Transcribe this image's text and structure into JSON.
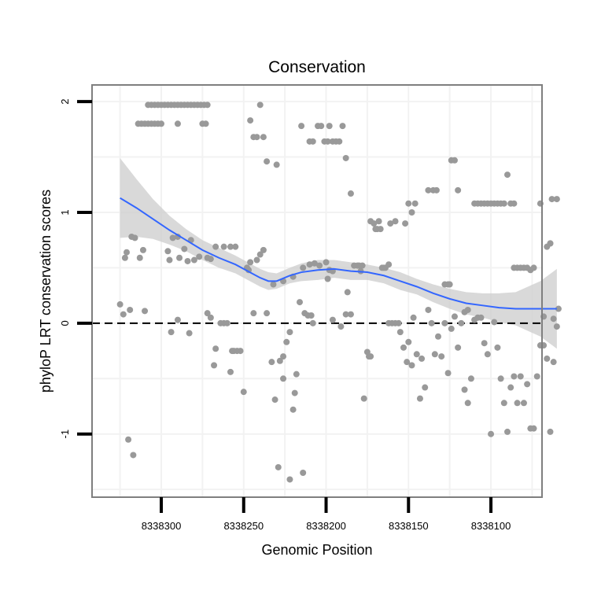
{
  "chart_data": {
    "type": "scatter",
    "title": "Conservation",
    "xlabel": "Genomic Position",
    "ylabel": "phyloP LRT conservation scores",
    "x_reversed": true,
    "xlim": [
      8338069,
      8338342
    ],
    "ylim": [
      -1.57,
      2.15
    ],
    "xticks": [
      8338300,
      8338250,
      8338200,
      8338150,
      8338100
    ],
    "xtick_labels": [
      "8338300",
      "8338250",
      "8338200",
      "8338150",
      "8338100"
    ],
    "yticks": [
      -1,
      0,
      1,
      2
    ],
    "ytick_labels": [
      "-1",
      "0",
      "1",
      "2"
    ],
    "reference_line": {
      "y": 0,
      "style": "dashed"
    },
    "colors": {
      "points": "#999999",
      "smooth": "#3366ff",
      "band": "#cccccc",
      "grid": "#f2f2f2",
      "frame": "#7f7f7f"
    },
    "points": [
      [
        8338325,
        0.17
      ],
      [
        8338323,
        0.08
      ],
      [
        8338322,
        0.59
      ],
      [
        8338321,
        0.64
      ],
      [
        8338320,
        -1.05
      ],
      [
        8338319,
        0.12
      ],
      [
        8338318,
        0.78
      ],
      [
        8338317,
        -1.19
      ],
      [
        8338316,
        0.77
      ],
      [
        8338313,
        0.59
      ],
      [
        8338311,
        0.66
      ],
      [
        8338310,
        0.11
      ],
      [
        8338314,
        1.8
      ],
      [
        8338312,
        1.8
      ],
      [
        8338310,
        1.8
      ],
      [
        8338308,
        1.8
      ],
      [
        8338306,
        1.8
      ],
      [
        8338304,
        1.8
      ],
      [
        8338302,
        1.8
      ],
      [
        8338300,
        1.8
      ],
      [
        8338290,
        1.8
      ],
      [
        8338275,
        1.8
      ],
      [
        8338273,
        1.8
      ],
      [
        8338308,
        1.97
      ],
      [
        8338306,
        1.97
      ],
      [
        8338304,
        1.97
      ],
      [
        8338302,
        1.97
      ],
      [
        8338300,
        1.97
      ],
      [
        8338298,
        1.97
      ],
      [
        8338296,
        1.97
      ],
      [
        8338294,
        1.97
      ],
      [
        8338292,
        1.97
      ],
      [
        8338290,
        1.97
      ],
      [
        8338288,
        1.97
      ],
      [
        8338286,
        1.97
      ],
      [
        8338284,
        1.97
      ],
      [
        8338282,
        1.97
      ],
      [
        8338280,
        1.97
      ],
      [
        8338278,
        1.97
      ],
      [
        8338276,
        1.97
      ],
      [
        8338274,
        1.97
      ],
      [
        8338272,
        1.97
      ],
      [
        8338296,
        0.65
      ],
      [
        8338295,
        0.57
      ],
      [
        8338293,
        0.77
      ],
      [
        8338290,
        0.78
      ],
      [
        8338289,
        0.59
      ],
      [
        8338286,
        0.67
      ],
      [
        8338284,
        0.56
      ],
      [
        8338282,
        0.75
      ],
      [
        8338280,
        0.57
      ],
      [
        8338277,
        0.6
      ],
      [
        8338272,
        0.59
      ],
      [
        8338270,
        0.58
      ],
      [
        8338267,
        0.69
      ],
      [
        8338262,
        0.69
      ],
      [
        8338258,
        0.69
      ],
      [
        8338255,
        0.69
      ],
      [
        8338294,
        -0.08
      ],
      [
        8338290,
        0.03
      ],
      [
        8338283,
        -0.09
      ],
      [
        8338272,
        0.09
      ],
      [
        8338270,
        0.05
      ],
      [
        8338268,
        -0.38
      ],
      [
        8338267,
        -0.23
      ],
      [
        8338264,
        0.0
      ],
      [
        8338262,
        0.0
      ],
      [
        8338260,
        0.0
      ],
      [
        8338258,
        -0.44
      ],
      [
        8338257,
        -0.25
      ],
      [
        8338256,
        -0.25
      ],
      [
        8338254,
        -0.25
      ],
      [
        8338252,
        -0.25
      ],
      [
        8338250,
        -0.62
      ],
      [
        8338248,
        0.5
      ],
      [
        8338247,
        0.48
      ],
      [
        8338246,
        0.55
      ],
      [
        8338244,
        0.09
      ],
      [
        8338242,
        0.57
      ],
      [
        8338240,
        0.62
      ],
      [
        8338238,
        0.66
      ],
      [
        8338236,
        0.09
      ],
      [
        8338246,
        1.83
      ],
      [
        8338244,
        1.68
      ],
      [
        8338242,
        1.68
      ],
      [
        8338240,
        1.97
      ],
      [
        8338238,
        1.68
      ],
      [
        8338236,
        1.46
      ],
      [
        8338230,
        1.43
      ],
      [
        8338233,
        -0.35
      ],
      [
        8338231,
        -0.69
      ],
      [
        8338229,
        -1.3
      ],
      [
        8338228,
        -0.34
      ],
      [
        8338226,
        -0.3
      ],
      [
        8338226,
        -0.5
      ],
      [
        8338224,
        -0.17
      ],
      [
        8338222,
        -0.08
      ],
      [
        8338222,
        -1.41
      ],
      [
        8338220,
        -0.78
      ],
      [
        8338219,
        -0.63
      ],
      [
        8338218,
        -0.46
      ],
      [
        8338216,
        0.19
      ],
      [
        8338214,
        -1.35
      ],
      [
        8338213,
        0.09
      ],
      [
        8338211,
        0.07
      ],
      [
        8338209,
        0.07
      ],
      [
        8338208,
        0.0
      ],
      [
        8338232,
        0.35
      ],
      [
        8338226,
        0.38
      ],
      [
        8338220,
        0.42
      ],
      [
        8338214,
        0.5
      ],
      [
        8338210,
        0.53
      ],
      [
        8338207,
        0.54
      ],
      [
        8338204,
        0.52
      ],
      [
        8338200,
        0.55
      ],
      [
        8338199,
        0.4
      ],
      [
        8338198,
        0.48
      ],
      [
        8338196,
        0.47
      ],
      [
        8338215,
        1.78
      ],
      [
        8338210,
        1.64
      ],
      [
        8338208,
        1.64
      ],
      [
        8338205,
        1.78
      ],
      [
        8338203,
        1.78
      ],
      [
        8338201,
        1.64
      ],
      [
        8338199,
        1.64
      ],
      [
        8338198,
        1.78
      ],
      [
        8338196,
        1.64
      ],
      [
        8338194,
        1.64
      ],
      [
        8338192,
        1.64
      ],
      [
        8338190,
        1.78
      ],
      [
        8338188,
        1.49
      ],
      [
        8338185,
        1.17
      ],
      [
        8338196,
        0.03
      ],
      [
        8338191,
        -0.03
      ],
      [
        8338188,
        0.08
      ],
      [
        8338187,
        0.28
      ],
      [
        8338185,
        0.08
      ],
      [
        8338183,
        0.52
      ],
      [
        8338181,
        0.52
      ],
      [
        8338180,
        0.52
      ],
      [
        8338179,
        0.47
      ],
      [
        8338178,
        0.52
      ],
      [
        8338177,
        -0.68
      ],
      [
        8338175,
        -0.26
      ],
      [
        8338174,
        -0.3
      ],
      [
        8338173,
        -0.3
      ],
      [
        8338173,
        0.92
      ],
      [
        8338171,
        0.9
      ],
      [
        8338170,
        0.85
      ],
      [
        8338169,
        0.85
      ],
      [
        8338168,
        0.92
      ],
      [
        8338167,
        0.85
      ],
      [
        8338166,
        0.5
      ],
      [
        8338165,
        0.5
      ],
      [
        8338164,
        0.5
      ],
      [
        8338162,
        0.53
      ],
      [
        8338161,
        0.9
      ],
      [
        8338158,
        0.92
      ],
      [
        8338152,
        0.9
      ],
      [
        8338150,
        1.08
      ],
      [
        8338148,
        1.0
      ],
      [
        8338146,
        1.08
      ],
      [
        8338162,
        0.0
      ],
      [
        8338160,
        0.0
      ],
      [
        8338158,
        0.0
      ],
      [
        8338156,
        0.0
      ],
      [
        8338155,
        -0.08
      ],
      [
        8338153,
        -0.22
      ],
      [
        8338151,
        -0.35
      ],
      [
        8338150,
        -0.17
      ],
      [
        8338148,
        -0.38
      ],
      [
        8338147,
        0.05
      ],
      [
        8338145,
        -0.28
      ],
      [
        8338143,
        -0.68
      ],
      [
        8338142,
        -0.32
      ],
      [
        8338140,
        -0.58
      ],
      [
        8338138,
        0.12
      ],
      [
        8338136,
        0.0
      ],
      [
        8338134,
        -0.28
      ],
      [
        8338132,
        -0.12
      ],
      [
        8338130,
        -0.3
      ],
      [
        8338128,
        0.0
      ],
      [
        8338126,
        -0.45
      ],
      [
        8338124,
        -0.05
      ],
      [
        8338122,
        0.06
      ],
      [
        8338120,
        -0.22
      ],
      [
        8338138,
        1.2
      ],
      [
        8338135,
        1.2
      ],
      [
        8338133,
        1.2
      ],
      [
        8338128,
        0.35
      ],
      [
        8338126,
        0.35
      ],
      [
        8338125,
        0.35
      ],
      [
        8338124,
        1.47
      ],
      [
        8338122,
        1.47
      ],
      [
        8338120,
        1.2
      ],
      [
        8338118,
        0.0
      ],
      [
        8338116,
        0.1
      ],
      [
        8338114,
        0.12
      ],
      [
        8338116,
        -0.6
      ],
      [
        8338114,
        -0.72
      ],
      [
        8338112,
        -0.5
      ],
      [
        8338110,
        0.03
      ],
      [
        8338108,
        0.05
      ],
      [
        8338106,
        0.05
      ],
      [
        8338104,
        -0.18
      ],
      [
        8338102,
        -0.28
      ],
      [
        8338100,
        -1.0
      ],
      [
        8338098,
        0.01
      ],
      [
        8338096,
        -0.22
      ],
      [
        8338094,
        -0.5
      ],
      [
        8338092,
        -0.72
      ],
      [
        8338090,
        -0.98
      ],
      [
        8338088,
        -0.58
      ],
      [
        8338110,
        1.08
      ],
      [
        8338108,
        1.08
      ],
      [
        8338106,
        1.08
      ],
      [
        8338104,
        1.08
      ],
      [
        8338102,
        1.08
      ],
      [
        8338100,
        1.08
      ],
      [
        8338098,
        1.08
      ],
      [
        8338096,
        1.08
      ],
      [
        8338094,
        1.08
      ],
      [
        8338092,
        1.08
      ],
      [
        8338090,
        1.34
      ],
      [
        8338088,
        1.08
      ],
      [
        8338086,
        1.08
      ],
      [
        8338086,
        -0.48
      ],
      [
        8338084,
        -0.72
      ],
      [
        8338082,
        -0.48
      ],
      [
        8338080,
        -0.72
      ],
      [
        8338078,
        -0.55
      ],
      [
        8338076,
        -0.95
      ],
      [
        8338074,
        -0.95
      ],
      [
        8338072,
        -0.48
      ],
      [
        8338070,
        -0.2
      ],
      [
        8338068,
        -0.2
      ],
      [
        8338066,
        -0.32
      ],
      [
        8338064,
        -0.98
      ],
      [
        8338062,
        -0.35
      ],
      [
        8338060,
        -0.03
      ],
      [
        8338086,
        0.5
      ],
      [
        8338084,
        0.5
      ],
      [
        8338082,
        0.5
      ],
      [
        8338080,
        0.5
      ],
      [
        8338078,
        0.5
      ],
      [
        8338076,
        0.48
      ],
      [
        8338074,
        0.5
      ],
      [
        8338070,
        1.08
      ],
      [
        8338068,
        0.06
      ],
      [
        8338066,
        0.69
      ],
      [
        8338064,
        0.72
      ],
      [
        8338064,
        0.72
      ],
      [
        8338063,
        1.12
      ],
      [
        8338062,
        0.04
      ],
      [
        8338060,
        1.12
      ],
      [
        8338059,
        0.13
      ]
    ],
    "smooth_line": [
      [
        8338325,
        1.13
      ],
      [
        8338315,
        1.04
      ],
      [
        8338305,
        0.94
      ],
      [
        8338295,
        0.84
      ],
      [
        8338285,
        0.75
      ],
      [
        8338275,
        0.66
      ],
      [
        8338265,
        0.59
      ],
      [
        8338255,
        0.53
      ],
      [
        8338245,
        0.45
      ],
      [
        8338240,
        0.41
      ],
      [
        8338235,
        0.38
      ],
      [
        8338230,
        0.38
      ],
      [
        8338222,
        0.43
      ],
      [
        8338215,
        0.46
      ],
      [
        8338205,
        0.48
      ],
      [
        8338195,
        0.49
      ],
      [
        8338185,
        0.47
      ],
      [
        8338175,
        0.46
      ],
      [
        8338165,
        0.43
      ],
      [
        8338155,
        0.38
      ],
      [
        8338145,
        0.33
      ],
      [
        8338135,
        0.27
      ],
      [
        8338125,
        0.22
      ],
      [
        8338115,
        0.18
      ],
      [
        8338105,
        0.16
      ],
      [
        8338095,
        0.14
      ],
      [
        8338085,
        0.13
      ],
      [
        8338070,
        0.13
      ],
      [
        8338060,
        0.13
      ]
    ],
    "band_upper": [
      [
        8338325,
        1.49
      ],
      [
        8338315,
        1.3
      ],
      [
        8338305,
        1.12
      ],
      [
        8338295,
        0.97
      ],
      [
        8338285,
        0.85
      ],
      [
        8338275,
        0.75
      ],
      [
        8338265,
        0.68
      ],
      [
        8338255,
        0.61
      ],
      [
        8338245,
        0.53
      ],
      [
        8338240,
        0.49
      ],
      [
        8338235,
        0.46
      ],
      [
        8338230,
        0.45
      ],
      [
        8338222,
        0.5
      ],
      [
        8338215,
        0.54
      ],
      [
        8338205,
        0.57
      ],
      [
        8338195,
        0.57
      ],
      [
        8338185,
        0.55
      ],
      [
        8338175,
        0.53
      ],
      [
        8338165,
        0.5
      ],
      [
        8338155,
        0.46
      ],
      [
        8338145,
        0.4
      ],
      [
        8338135,
        0.35
      ],
      [
        8338125,
        0.31
      ],
      [
        8338115,
        0.28
      ],
      [
        8338105,
        0.27
      ],
      [
        8338095,
        0.27
      ],
      [
        8338085,
        0.28
      ],
      [
        8338070,
        0.38
      ],
      [
        8338060,
        0.49
      ]
    ],
    "band_lower": [
      [
        8338325,
        0.77
      ],
      [
        8338315,
        0.78
      ],
      [
        8338305,
        0.76
      ],
      [
        8338295,
        0.71
      ],
      [
        8338285,
        0.65
      ],
      [
        8338275,
        0.57
      ],
      [
        8338265,
        0.5
      ],
      [
        8338255,
        0.45
      ],
      [
        8338245,
        0.37
      ],
      [
        8338240,
        0.33
      ],
      [
        8338235,
        0.3
      ],
      [
        8338230,
        0.31
      ],
      [
        8338222,
        0.36
      ],
      [
        8338215,
        0.38
      ],
      [
        8338205,
        0.39
      ],
      [
        8338195,
        0.41
      ],
      [
        8338185,
        0.39
      ],
      [
        8338175,
        0.39
      ],
      [
        8338165,
        0.36
      ],
      [
        8338155,
        0.3
      ],
      [
        8338145,
        0.26
      ],
      [
        8338135,
        0.19
      ],
      [
        8338125,
        0.13
      ],
      [
        8338115,
        0.08
      ],
      [
        8338105,
        0.05
      ],
      [
        8338095,
        0.01
      ],
      [
        8338085,
        -0.02
      ],
      [
        8338070,
        -0.12
      ],
      [
        8338060,
        -0.23
      ]
    ]
  }
}
